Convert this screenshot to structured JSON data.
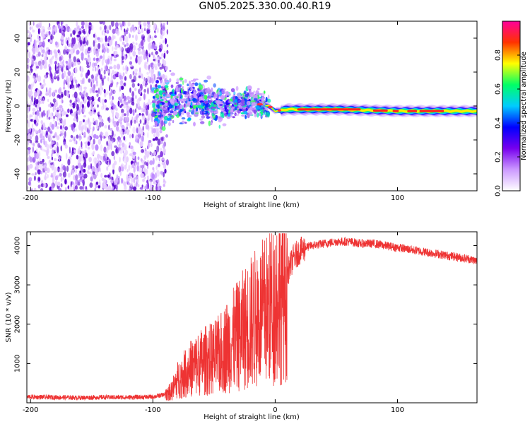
{
  "title": "GN05.2025.330.00.40.R19",
  "chart_data": [
    {
      "type": "heatmap",
      "xlabel": "Height of straight line (km)",
      "ylabel": "Frequency (Hz)",
      "xlim": [
        -203,
        165
      ],
      "ylim": [
        -50,
        50
      ],
      "xticks": [
        -200,
        -100,
        0,
        100
      ],
      "xtick_labels": [
        "-200",
        "-100",
        "0",
        "100"
      ],
      "yticks": [
        -40,
        -20,
        0,
        20,
        40
      ],
      "ytick_labels": [
        "-40",
        "-20",
        "0",
        "20",
        "40"
      ],
      "colorbar": {
        "label": "Normalized spectral amplitude",
        "range": [
          0.0,
          1.0
        ],
        "ticks": [
          0.0,
          0.2,
          0.4,
          0.6,
          0.8
        ],
        "tick_labels": [
          "0.0",
          "0.2",
          "0.4",
          "0.6",
          "0.8"
        ],
        "colormap": [
          "#ffffff",
          "#cc99ff",
          "#7700ee",
          "#0000ff",
          "#00ccff",
          "#00ff66",
          "#ffff00",
          "#ff3300",
          "#ff0099"
        ]
      },
      "regions": {
        "noise_region": {
          "x_range": [
            -203,
            -88
          ],
          "freq_range": [
            -50,
            50
          ]
        },
        "band_path": [
          {
            "x": -100,
            "freq": 0
          },
          {
            "x": -80,
            "freq": 3
          },
          {
            "x": -60,
            "freq": 3
          },
          {
            "x": -40,
            "freq": 0
          },
          {
            "x": -20,
            "freq": 2
          },
          {
            "x": -5,
            "freq": 0
          },
          {
            "x": 0,
            "freq": -3
          },
          {
            "x": 10,
            "freq": -2
          },
          {
            "x": 50,
            "freq": -2
          },
          {
            "x": 100,
            "freq": -3
          },
          {
            "x": 165,
            "freq": -3
          }
        ]
      }
    },
    {
      "type": "line",
      "xlabel": "Height of straight line (km)",
      "ylabel": "SNR (10 * v/v)",
      "xlim": [
        -203,
        165
      ],
      "ylim": [
        0,
        4350
      ],
      "xticks": [
        -200,
        -100,
        0,
        100
      ],
      "xtick_labels": [
        "-200",
        "-100",
        "0",
        "100"
      ],
      "yticks": [
        1000,
        2000,
        3000,
        4000
      ],
      "ytick_labels": [
        "1000",
        "2000",
        "3000",
        "4000"
      ],
      "series": [
        {
          "name": "SNR",
          "color": "#ee3333",
          "x": [
            -203,
            -180,
            -160,
            -140,
            -120,
            -100,
            -92,
            -85,
            -80,
            -75,
            -70,
            -65,
            -60,
            -55,
            -50,
            -45,
            -40,
            -35,
            -30,
            -25,
            -20,
            -15,
            -10,
            -5,
            0,
            5,
            10,
            15,
            20,
            25,
            30,
            40,
            50,
            60,
            70,
            80,
            90,
            100,
            110,
            120,
            130,
            140,
            150,
            160,
            165
          ],
          "values": [
            150,
            140,
            130,
            140,
            140,
            150,
            200,
            300,
            600,
            750,
            900,
            1000,
            1100,
            1150,
            1200,
            1300,
            1500,
            1650,
            1800,
            2000,
            2150,
            2300,
            2400,
            2550,
            2700,
            3000,
            3300,
            3700,
            3850,
            3950,
            4000,
            4050,
            4100,
            4100,
            4050,
            4050,
            4000,
            3950,
            3900,
            3850,
            3800,
            3750,
            3700,
            3650,
            3600
          ]
        }
      ]
    }
  ]
}
